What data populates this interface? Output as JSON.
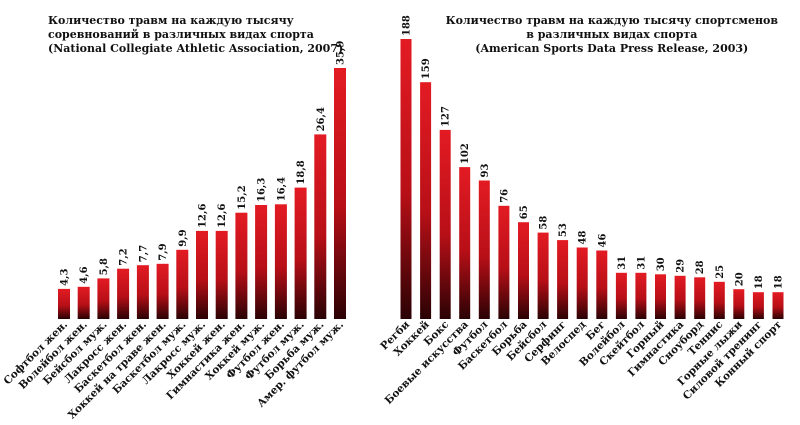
{
  "colors": {
    "bar_top": "#e31b23",
    "bar_bottom": "#2a0204",
    "text": "#111111"
  },
  "chart_data": [
    {
      "type": "bar",
      "title": "Количество травм на каждую тысячу\nсоревнований в различных видах спорта\n(National Collegiate Athletic Association, 2007)",
      "categories": [
        "Софтбол жен.",
        "Волейбол жен.",
        "Бейсбол муж.",
        "Лакросс жен.",
        "Баскетбол жен.",
        "Хоккей на траве жен.",
        "Баскетбол муж.",
        "Лакросс муж.",
        "Хоккей жен.",
        "Гимнастика жен.",
        "Хоккей муж.",
        "Футбол жен.",
        "Футбол муж.",
        "Борьба муж.",
        "Амер. футбол муж."
      ],
      "values": [
        4.3,
        4.6,
        5.8,
        7.2,
        7.7,
        7.9,
        9.9,
        12.6,
        12.6,
        15.2,
        16.3,
        16.4,
        18.8,
        26.4,
        35.9
      ],
      "value_labels": [
        "4,3",
        "4,6",
        "5,8",
        "7,2",
        "7,7",
        "7,9",
        "9,9",
        "12,6",
        "12,6",
        "15,2",
        "16,3",
        "16,4",
        "18,8",
        "26,4",
        "35,9"
      ],
      "ylim": [
        0,
        35.9
      ]
    },
    {
      "type": "bar",
      "title": "Количество травм на каждую тысячу спортсменов\nв различных видах спорта\n(American Sports Data Press Release, 2003)",
      "categories": [
        "Регби",
        "Хоккей",
        "Бокс",
        "Боевые искусства",
        "Футбол",
        "Баскетбол",
        "Борьба",
        "Бейсбол",
        "Серфинг",
        "Велоспед",
        "Бег",
        "Волейбол",
        "Скейтбол",
        "Горный",
        "Гимнастика",
        "Сноуборд",
        "Теннис",
        "Горные лыжи",
        "Силовой тренинг",
        "Конный спорт"
      ],
      "values": [
        188,
        159,
        127,
        102,
        93,
        76,
        65,
        58,
        53,
        48,
        46,
        31,
        31,
        30,
        29,
        28,
        25,
        20,
        18,
        18
      ],
      "value_labels": [
        "188",
        "159",
        "127",
        "102",
        "93",
        "76",
        "65",
        "58",
        "53",
        "48",
        "46",
        "31",
        "31",
        "30",
        "29",
        "28",
        "25",
        "20",
        "18",
        "18"
      ],
      "ylim": [
        0,
        188
      ]
    }
  ]
}
